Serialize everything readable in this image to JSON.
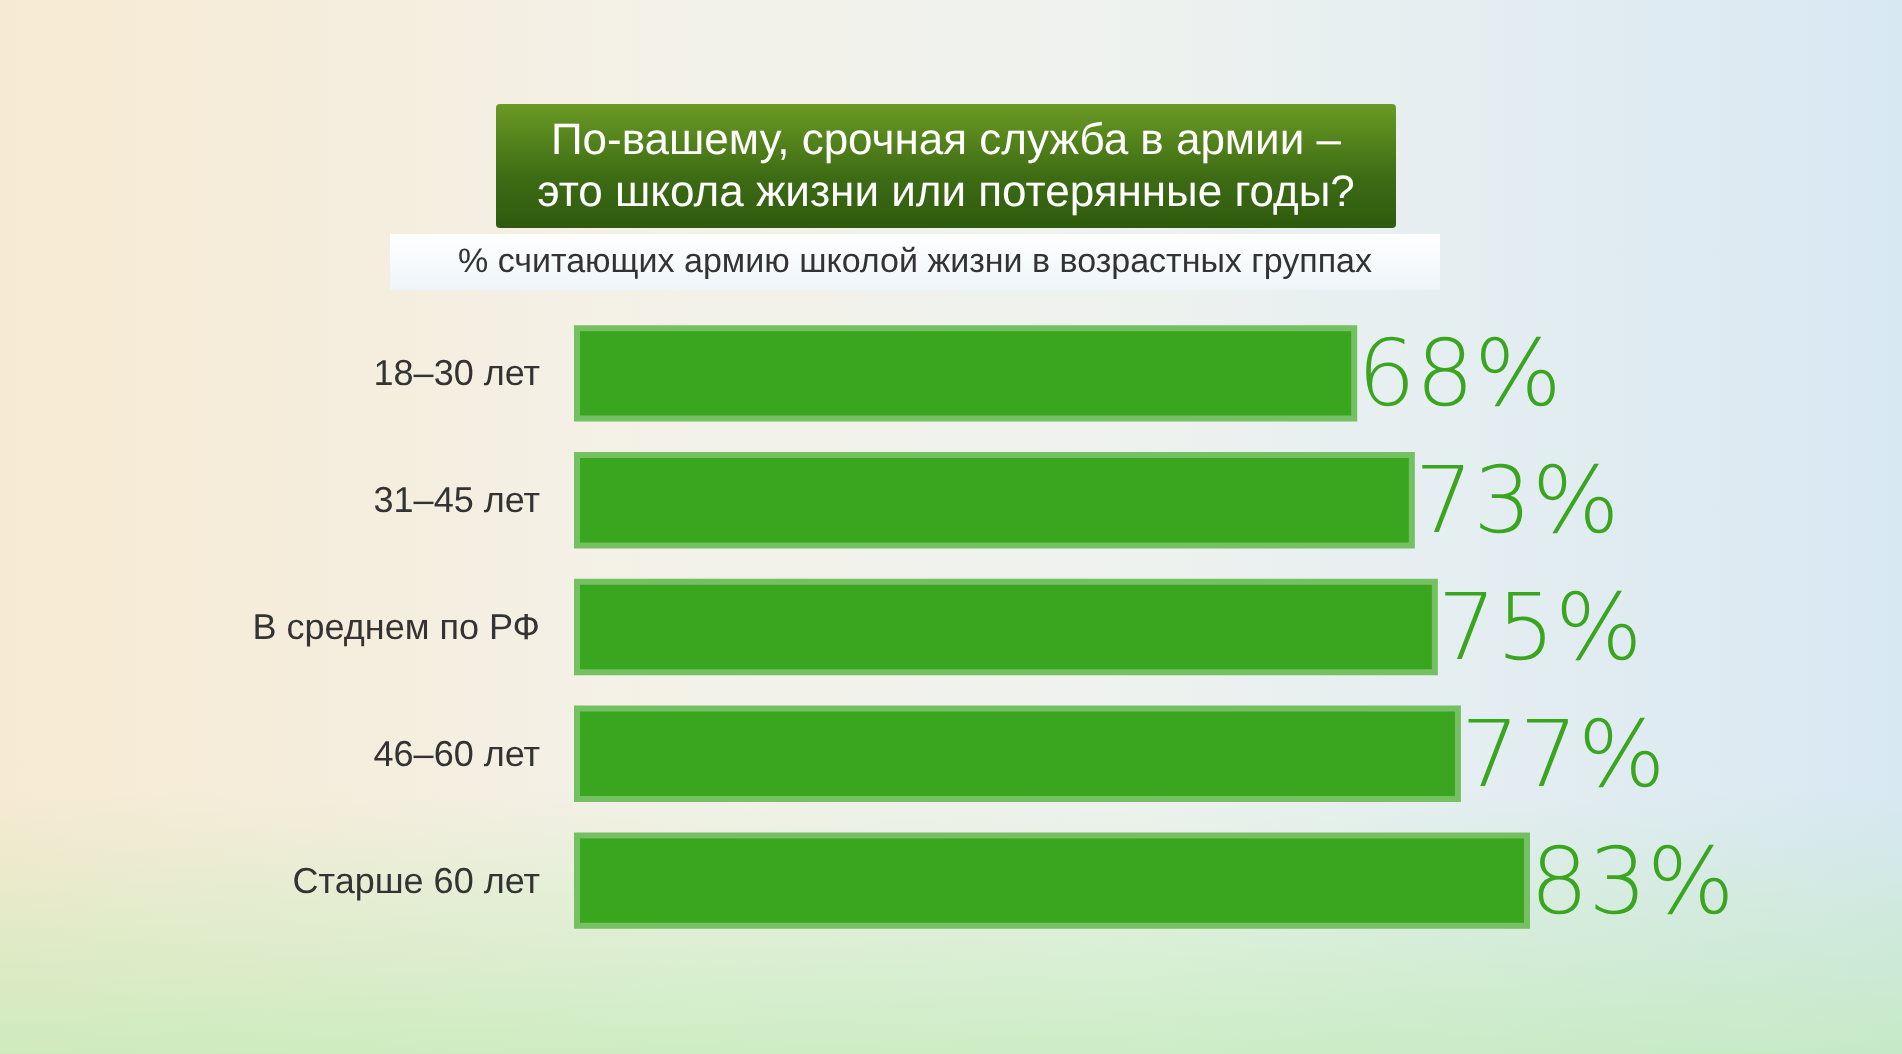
{
  "chart_data": {
    "type": "bar",
    "orientation": "horizontal",
    "title": "По-вашему, срочная служба в армии – это школа жизни или потерянные годы?",
    "subtitle": "% считающих армию школой жизни в возрастных группах",
    "categories": [
      "18–30 лет",
      "31–45 лет",
      "В среднем по РФ",
      "46–60 лет",
      "Старше 60 лет"
    ],
    "values": [
      68,
      73,
      75,
      77,
      83
    ],
    "value_labels": [
      "68%",
      "73%",
      "75%",
      "77%",
      "83%"
    ],
    "color": "#3aa51e",
    "tick_labels": "y"
  }
}
